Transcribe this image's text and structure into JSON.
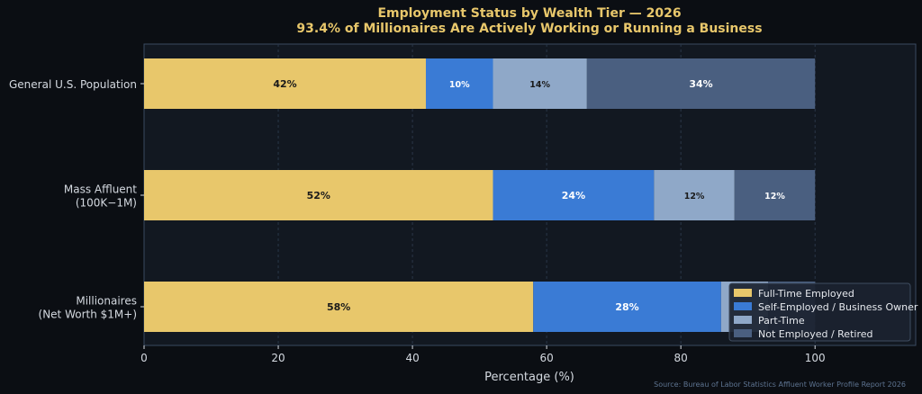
{
  "chart_data": {
    "type": "bar",
    "orientation": "horizontal",
    "stacked": true,
    "title": "Employment Status by Wealth Tier — 2026",
    "subtitle": "93.4% of Millionaires Are Actively Working or Running a Business",
    "xlabel": "Percentage (%)",
    "ylabel": "",
    "xlim": [
      0,
      115
    ],
    "xticks": [
      0,
      20,
      40,
      60,
      80,
      100
    ],
    "grid": true,
    "legend_position": "bottom-right",
    "categories": [
      {
        "lines": [
          "General U.S. Population"
        ]
      },
      {
        "lines": [
          "Mass Affluent",
          "(100K−1M)"
        ]
      },
      {
        "lines": [
          "Millionaires",
          "(Net Worth $1M+)"
        ]
      }
    ],
    "series": [
      {
        "name": "Full-Time Employed",
        "color": "#e8c76b",
        "label_color": "#1a1a1a",
        "values": [
          42,
          52,
          58
        ]
      },
      {
        "name": "Self-Employed / Business Owner",
        "color": "#3a7bd5",
        "label_color": "#ffffff",
        "values": [
          10,
          24,
          28
        ]
      },
      {
        "name": "Part-Time",
        "color": "#8fa8c8",
        "label_color": "#1a1a1a",
        "values": [
          14,
          12,
          7
        ]
      },
      {
        "name": "Not Employed / Retired",
        "color": "#4a5f80",
        "label_color": "#ffffff",
        "values": [
          34,
          12,
          7
        ]
      }
    ],
    "segment_labels": [
      [
        "42%",
        "10%",
        "14%",
        "34%"
      ],
      [
        "52%",
        "24%",
        "12%",
        "12%"
      ],
      [
        "58%",
        "28%",
        "",
        ""
      ]
    ],
    "source": "Source: Bureau of Labor Statistics Affluent Worker Profile Report 2026"
  },
  "colors": {
    "background": "#0b0e13",
    "plot_background": "#121821",
    "plot_border": "#3a4a60",
    "title": "#e8c76b",
    "grid": "#2a3648",
    "text": "#d4d9e0"
  }
}
